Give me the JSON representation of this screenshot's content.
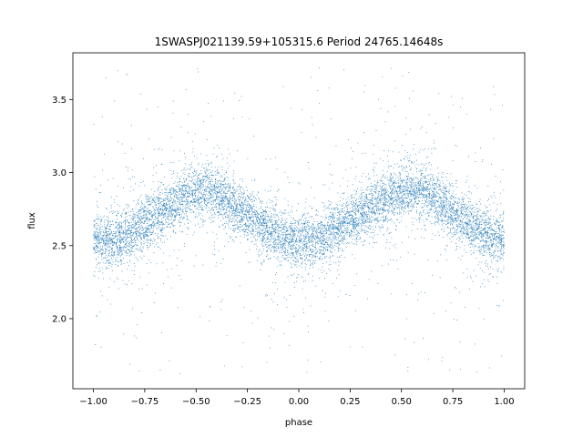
{
  "chart_data": {
    "type": "scatter",
    "title": "1SWASPJ021139.59+105315.6 Period 24765.14648s",
    "xlabel": "phase",
    "ylabel": "flux",
    "xlim": [
      -1.1,
      1.1
    ],
    "ylim": [
      1.52,
      3.82
    ],
    "xticks": [
      -1.0,
      -0.75,
      -0.5,
      -0.25,
      0.0,
      0.25,
      0.5,
      0.75,
      1.0
    ],
    "xtick_labels": [
      "−1.00",
      "−0.75",
      "−0.50",
      "−0.25",
      "0.00",
      "0.25",
      "0.50",
      "0.75",
      "1.00"
    ],
    "yticks": [
      2.0,
      2.5,
      3.0,
      3.5
    ],
    "ytick_labels": [
      "2.0",
      "2.5",
      "3.0",
      "3.5"
    ],
    "grid": false,
    "legend": "none",
    "marker_color": "#1f77b4",
    "phase_range": [
      -1.0,
      1.0
    ],
    "curve": {
      "description_phase": [
        -1.0,
        -0.95,
        -0.9,
        -0.85,
        -0.8,
        -0.75,
        -0.7,
        -0.65,
        -0.6,
        -0.55,
        -0.5,
        -0.45,
        -0.4,
        -0.35,
        -0.3,
        -0.25,
        -0.2,
        -0.15,
        -0.1,
        -0.05,
        0.0,
        0.05,
        0.1,
        0.15,
        0.2,
        0.25,
        0.3,
        0.35,
        0.4,
        0.45,
        0.5,
        0.55,
        0.6,
        0.65,
        0.7,
        0.75,
        0.8,
        0.85,
        0.9,
        0.95,
        1.0
      ],
      "mean_flux": [
        2.55,
        2.53,
        2.53,
        2.56,
        2.6,
        2.65,
        2.7,
        2.75,
        2.79,
        2.83,
        2.86,
        2.87,
        2.85,
        2.81,
        2.76,
        2.71,
        2.66,
        2.61,
        2.57,
        2.54,
        2.53,
        2.53,
        2.55,
        2.58,
        2.62,
        2.67,
        2.72,
        2.76,
        2.8,
        2.84,
        2.86,
        2.87,
        2.86,
        2.83,
        2.78,
        2.73,
        2.67,
        2.62,
        2.58,
        2.56,
        2.55
      ],
      "band_sigma": 0.09,
      "outlier_range": [
        1.62,
        3.72
      ]
    }
  }
}
